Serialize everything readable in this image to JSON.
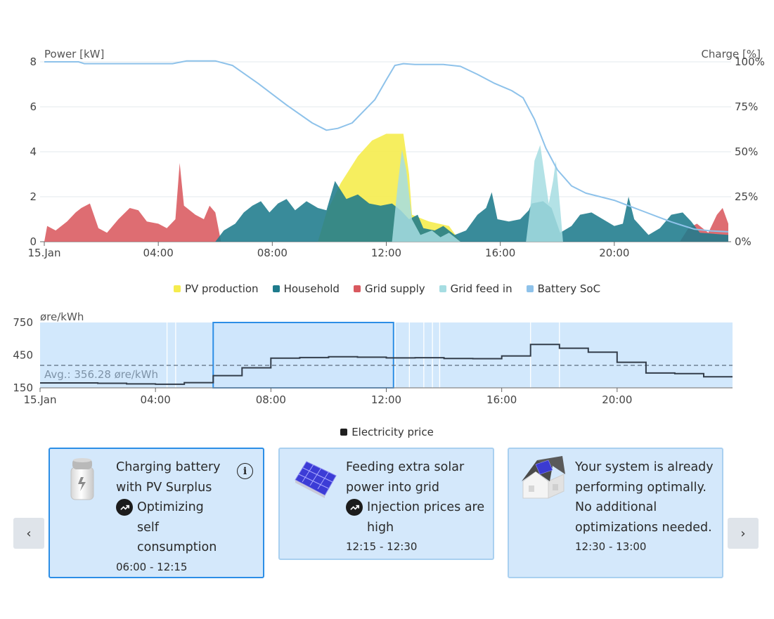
{
  "power_chart": {
    "y_left_title": "Power [kW]",
    "y_right_title": "Charge [%]",
    "y_left_ticks": [
      "0",
      "2",
      "4",
      "6",
      "8"
    ],
    "y_right_ticks": [
      "0%",
      "25%",
      "50%",
      "75%",
      "100%"
    ],
    "x_ticks": [
      "15.Jan",
      "04:00",
      "08:00",
      "12:00",
      "16:00",
      "20:00"
    ]
  },
  "legend": {
    "pv": "PV production",
    "household": "Household",
    "grid_supply": "Grid supply",
    "grid_feed": "Grid feed in",
    "battery": "Battery SoC"
  },
  "price_chart": {
    "y_title": "øre/kWh",
    "y_ticks": [
      "150",
      "450",
      "750"
    ],
    "x_ticks": [
      "15.Jan",
      "04:00",
      "08:00",
      "12:00",
      "16:00",
      "20:00"
    ],
    "avg_label": "Avg.: 356.28 øre/kWh",
    "legend_label": "Electricity price"
  },
  "colors": {
    "pv": "#f5ec4e",
    "household": "#1e7b8c",
    "grid_supply": "#d9595f",
    "grid_feed": "#a6dde2",
    "battery": "#8ec2ea",
    "price": "#333d4a",
    "selection": "#2c8ee6",
    "plot_bg": "#d2e8fc"
  },
  "chart_data": [
    {
      "type": "area",
      "title": "",
      "xlabel": "",
      "ylabel": "Power [kW]",
      "y2label": "Charge [%]",
      "xlim": [
        0,
        24
      ],
      "ylim": [
        0,
        8
      ],
      "y2lim": [
        0,
        100
      ],
      "series": [
        {
          "name": "PV production",
          "axis": "left",
          "points": [
            [
              9.6,
              0
            ],
            [
              9.9,
              1.3
            ],
            [
              10.4,
              2.6
            ],
            [
              11,
              3.8
            ],
            [
              11.5,
              4.5
            ],
            [
              12,
              4.8
            ],
            [
              12.6,
              4.8
            ],
            [
              12.8,
              3
            ],
            [
              12.9,
              1.2
            ],
            [
              13.5,
              0.9
            ],
            [
              14.2,
              0.7
            ],
            [
              14.6,
              0
            ],
            [
              24,
              0
            ]
          ]
        },
        {
          "name": "Household",
          "axis": "left",
          "points": [
            [
              0,
              0
            ],
            [
              6,
              0
            ],
            [
              6.3,
              0.5
            ],
            [
              6.7,
              0.8
            ],
            [
              7,
              1.3
            ],
            [
              7.3,
              1.6
            ],
            [
              7.6,
              1.8
            ],
            [
              7.9,
              1.3
            ],
            [
              8.2,
              1.7
            ],
            [
              8.5,
              1.9
            ],
            [
              8.8,
              1.4
            ],
            [
              9.2,
              1.8
            ],
            [
              9.6,
              1.5
            ],
            [
              9.9,
              1.4
            ],
            [
              10.2,
              2.7
            ],
            [
              10.6,
              1.9
            ],
            [
              11,
              2.1
            ],
            [
              11.4,
              1.7
            ],
            [
              11.8,
              1.6
            ],
            [
              12.2,
              1.7
            ],
            [
              12.5,
              1.4
            ],
            [
              12.8,
              1.0
            ],
            [
              13.1,
              1.2
            ],
            [
              13.3,
              0.6
            ],
            [
              13.7,
              0.5
            ],
            [
              14,
              0.7
            ],
            [
              14.4,
              0.3
            ],
            [
              14.8,
              0.5
            ],
            [
              15.2,
              1.2
            ],
            [
              15.5,
              1.5
            ],
            [
              15.7,
              2.2
            ],
            [
              15.9,
              1.0
            ],
            [
              16.3,
              0.9
            ],
            [
              16.7,
              1.0
            ],
            [
              17,
              1.4
            ],
            [
              17.1,
              1.7
            ],
            [
              17.5,
              1.8
            ],
            [
              17.8,
              1.5
            ],
            [
              18.1,
              0.4
            ],
            [
              18.5,
              0.7
            ],
            [
              18.8,
              1.2
            ],
            [
              19.2,
              1.3
            ],
            [
              19.6,
              1.0
            ],
            [
              20,
              0.7
            ],
            [
              20.3,
              0.8
            ],
            [
              20.5,
              2.0
            ],
            [
              20.7,
              1.0
            ],
            [
              21.2,
              0.3
            ],
            [
              21.6,
              0.6
            ],
            [
              22,
              1.2
            ],
            [
              22.4,
              1.3
            ],
            [
              22.7,
              0.9
            ],
            [
              23,
              0.4
            ],
            [
              24,
              0.3
            ]
          ]
        },
        {
          "name": "Grid supply",
          "axis": "left",
          "points": [
            [
              0,
              0
            ],
            [
              0.1,
              0.7
            ],
            [
              0.4,
              0.5
            ],
            [
              0.8,
              0.9
            ],
            [
              1.1,
              1.3
            ],
            [
              1.3,
              1.5
            ],
            [
              1.6,
              1.7
            ],
            [
              1.9,
              0.6
            ],
            [
              2.2,
              0.4
            ],
            [
              2.6,
              1.0
            ],
            [
              3,
              1.5
            ],
            [
              3.3,
              1.4
            ],
            [
              3.6,
              0.9
            ],
            [
              4,
              0.8
            ],
            [
              4.3,
              0.6
            ],
            [
              4.6,
              1.0
            ],
            [
              4.75,
              3.5
            ],
            [
              4.9,
              1.6
            ],
            [
              5.3,
              1.2
            ],
            [
              5.6,
              1.0
            ],
            [
              5.8,
              1.6
            ],
            [
              6,
              1.3
            ],
            [
              6.2,
              0
            ],
            [
              22.3,
              0
            ],
            [
              22.6,
              0.6
            ],
            [
              22.9,
              0.8
            ],
            [
              23.3,
              0.4
            ],
            [
              23.6,
              1.2
            ],
            [
              23.8,
              1.5
            ],
            [
              24,
              0.8
            ]
          ]
        },
        {
          "name": "Grid feed in",
          "axis": "left",
          "points": [
            [
              0,
              0
            ],
            [
              12.2,
              0
            ],
            [
              12.4,
              2.5
            ],
            [
              12.55,
              4.1
            ],
            [
              12.7,
              3.2
            ],
            [
              12.9,
              1.0
            ],
            [
              13.2,
              0.3
            ],
            [
              13.6,
              0.5
            ],
            [
              13.9,
              0.2
            ],
            [
              14.2,
              0.4
            ],
            [
              14.6,
              0
            ],
            [
              16.9,
              0
            ],
            [
              17.05,
              1.5
            ],
            [
              17.2,
              3.6
            ],
            [
              17.4,
              4.3
            ],
            [
              17.55,
              3.0
            ],
            [
              17.7,
              1.7
            ],
            [
              17.85,
              2.7
            ],
            [
              17.95,
              3.6
            ],
            [
              18.1,
              1.5
            ],
            [
              18.2,
              0
            ],
            [
              24,
              0
            ]
          ]
        },
        {
          "name": "Battery SoC",
          "axis": "right",
          "points": [
            [
              0,
              100
            ],
            [
              1.2,
              100
            ],
            [
              1.4,
              99
            ],
            [
              4.5,
              99
            ],
            [
              5,
              100.5
            ],
            [
              6,
              100.5
            ],
            [
              6.6,
              98
            ],
            [
              7.5,
              88
            ],
            [
              8.5,
              76
            ],
            [
              9.4,
              66
            ],
            [
              9.9,
              62
            ],
            [
              10.3,
              63
            ],
            [
              10.8,
              66
            ],
            [
              11.6,
              79
            ],
            [
              12,
              90
            ],
            [
              12.3,
              98
            ],
            [
              12.6,
              99
            ],
            [
              13,
              98.5
            ],
            [
              14,
              98.5
            ],
            [
              14.6,
              97.5
            ],
            [
              15.2,
              93
            ],
            [
              15.8,
              88
            ],
            [
              16.4,
              84
            ],
            [
              16.8,
              80
            ],
            [
              17.2,
              68
            ],
            [
              17.6,
              52
            ],
            [
              18,
              40
            ],
            [
              18.5,
              31
            ],
            [
              19,
              27
            ],
            [
              19.5,
              25
            ],
            [
              20,
              23
            ],
            [
              20.5,
              20
            ],
            [
              21,
              17
            ],
            [
              21.5,
              14
            ],
            [
              22,
              11
            ],
            [
              22.4,
              9
            ],
            [
              22.8,
              7
            ],
            [
              23.4,
              6
            ],
            [
              24,
              5.5
            ]
          ]
        }
      ]
    },
    {
      "type": "line",
      "title": "",
      "xlabel": "",
      "ylabel": "øre/kWh",
      "xlim": [
        0,
        24
      ],
      "ylim": [
        150,
        750
      ],
      "avg": 356.28,
      "selection_range": [
        6,
        12.25
      ],
      "series": [
        {
          "name": "Electricity price",
          "step": true,
          "points": [
            [
              0,
              195
            ],
            [
              1,
              195
            ],
            [
              2,
              192
            ],
            [
              3,
              186
            ],
            [
              4,
              183
            ],
            [
              5,
              198
            ],
            [
              6,
              262
            ],
            [
              7,
              334
            ],
            [
              8,
              422
            ],
            [
              9,
              428
            ],
            [
              10,
              435
            ],
            [
              11,
              431
            ],
            [
              12,
              425
            ],
            [
              13,
              427
            ],
            [
              14,
              420
            ],
            [
              15,
              418
            ],
            [
              16,
              443
            ],
            [
              17,
              548
            ],
            [
              18,
              514
            ],
            [
              19,
              478
            ],
            [
              20,
              385
            ],
            [
              21,
              286
            ],
            [
              22,
              281
            ],
            [
              23,
              252
            ],
            [
              24,
              252
            ]
          ]
        }
      ]
    }
  ],
  "cards": [
    {
      "title": "Charging battery with PV Surplus",
      "reason": "Optimizing self consumption",
      "time": "06:00 - 12:15",
      "icon": "battery-icon"
    },
    {
      "title": "Feeding extra solar power into grid",
      "reason": "Injection prices are high",
      "time": "12:15 - 12:30",
      "icon": "solar-panel-icon"
    },
    {
      "title": "Your system is already performing optimally. No additional optimizations needed.",
      "time": "12:30 - 13:00",
      "icon": "house-icon"
    }
  ],
  "nav": {
    "prev": "‹",
    "next": "›"
  }
}
